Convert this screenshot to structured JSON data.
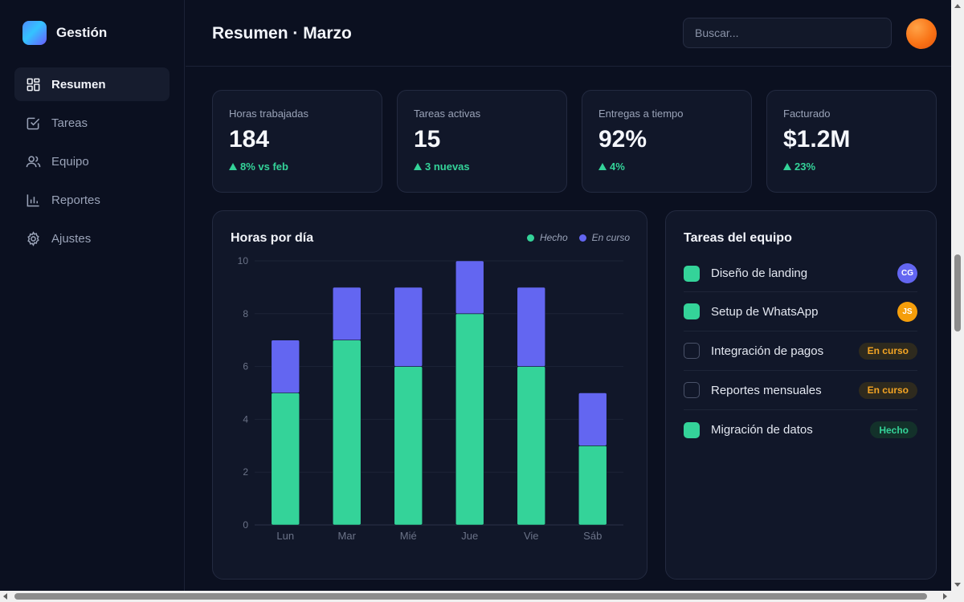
{
  "app": {
    "name": "Gestión"
  },
  "nav": [
    {
      "label": "Resumen",
      "icon": "grid-icon",
      "active": true
    },
    {
      "label": "Tareas",
      "icon": "check-square-icon",
      "active": false
    },
    {
      "label": "Equipo",
      "icon": "users-icon",
      "active": false
    },
    {
      "label": "Reportes",
      "icon": "bar-chart-icon",
      "active": false
    },
    {
      "label": "Ajustes",
      "icon": "gear-icon",
      "active": false
    }
  ],
  "header": {
    "title": "Resumen · Marzo",
    "search_placeholder": "Buscar..."
  },
  "kpis": [
    {
      "label": "Horas trabajadas",
      "value": "184",
      "delta": "8% vs feb"
    },
    {
      "label": "Tareas activas",
      "value": "15",
      "delta": "3 nuevas"
    },
    {
      "label": "Entregas a tiempo",
      "value": "92%",
      "delta": "4%"
    },
    {
      "label": "Facturado",
      "value": "$1.2M",
      "delta": "23%"
    }
  ],
  "chart_card": {
    "title": "Horas por día"
  },
  "chart_data": {
    "type": "bar",
    "stacked": true,
    "title": "Horas por día",
    "categories": [
      "Lun",
      "Mar",
      "Mié",
      "Jue",
      "Vie",
      "Sáb"
    ],
    "series": [
      {
        "name": "Hecho",
        "values": [
          5,
          7,
          6,
          8,
          6,
          3
        ],
        "color": "#34d399"
      },
      {
        "name": "En curso",
        "values": [
          2,
          2,
          3,
          2,
          3,
          2
        ],
        "color": "#6366f1"
      }
    ],
    "ylim": [
      0,
      10
    ],
    "yticks": [
      0,
      2,
      4,
      6,
      8,
      10
    ],
    "grid": true,
    "legend": "top-right"
  },
  "tasks_card": {
    "title": "Tareas del equipo",
    "items": [
      {
        "name": "Diseño de landing",
        "done": true,
        "assignee": "CG",
        "assignee_color": "#6366f1"
      },
      {
        "name": "Setup de WhatsApp",
        "done": true,
        "assignee": "JS",
        "assignee_color": "#f59e0b"
      },
      {
        "name": "Integración de pagos",
        "done": false,
        "status": "En curso"
      },
      {
        "name": "Reportes mensuales",
        "done": false,
        "status": "En curso"
      },
      {
        "name": "Migración de datos",
        "done": true,
        "status": "Hecho"
      }
    ]
  },
  "colors": {
    "accent_green": "#34d399",
    "accent_indigo": "#6366f1",
    "status_warning": "#f5a524"
  }
}
